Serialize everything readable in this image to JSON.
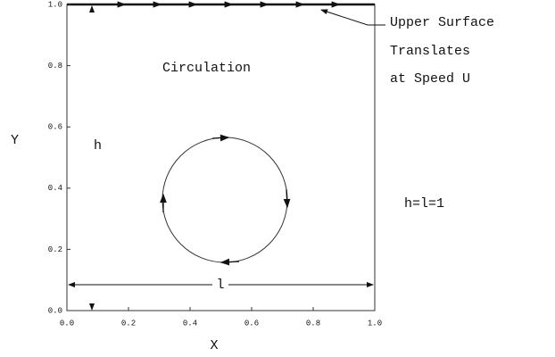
{
  "diagram": {
    "annotation": [
      "Upper Surface",
      "Translates",
      "at Speed U"
    ],
    "circulation_label": "Circulation",
    "height_label": "h",
    "length_label": "l",
    "dimension_note": "h=l=1",
    "x_axis_label": "X",
    "y_axis_label": "Y",
    "x_tick_labels": [
      "0.0",
      "0.2",
      "0.4",
      "0.6",
      "0.8",
      "1.0"
    ],
    "y_tick_labels": [
      "0.0",
      "0.2",
      "0.4",
      "0.6",
      "0.8",
      "1.0"
    ]
  }
}
